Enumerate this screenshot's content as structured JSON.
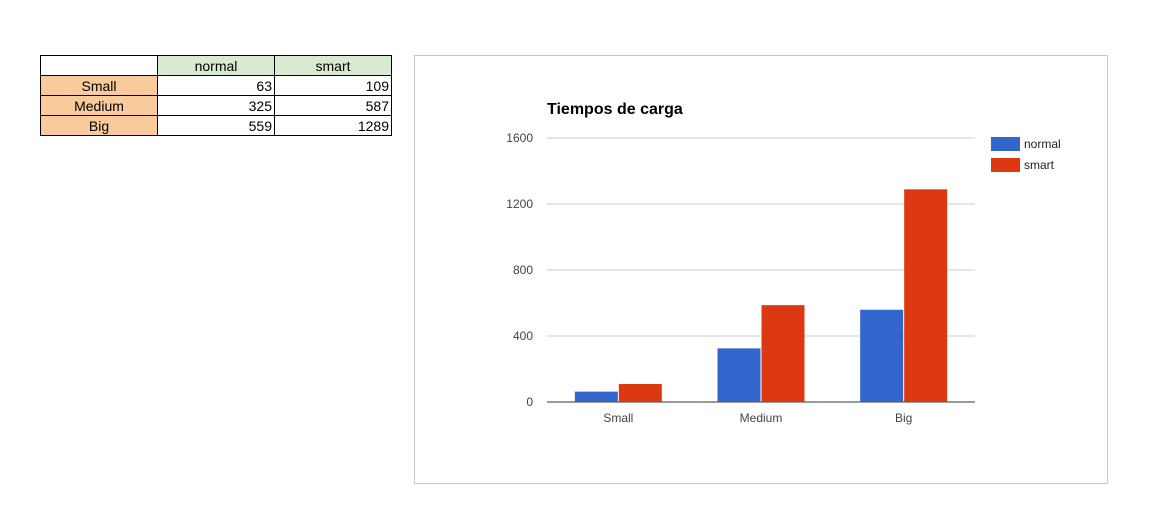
{
  "table": {
    "corner": "",
    "columns": [
      "normal",
      "smart"
    ],
    "rows": [
      {
        "label": "Small",
        "values": [
          "63",
          "109"
        ]
      },
      {
        "label": "Medium",
        "values": [
          "325",
          "587"
        ]
      },
      {
        "label": "Big",
        "values": [
          "559",
          "1289"
        ]
      }
    ]
  },
  "chart_data": {
    "type": "bar",
    "title": "Tiempos de carga",
    "categories": [
      "Small",
      "Medium",
      "Big"
    ],
    "series": [
      {
        "name": "normal",
        "color": "#3366cc",
        "values": [
          63,
          325,
          559
        ]
      },
      {
        "name": "smart",
        "color": "#dc3912",
        "values": [
          109,
          587,
          1289
        ]
      }
    ],
    "ylim": [
      0,
      1600
    ],
    "yticks": [
      0,
      400,
      800,
      1200,
      1600
    ],
    "xlabel": "",
    "ylabel": "",
    "grid": true,
    "legend": "right"
  }
}
